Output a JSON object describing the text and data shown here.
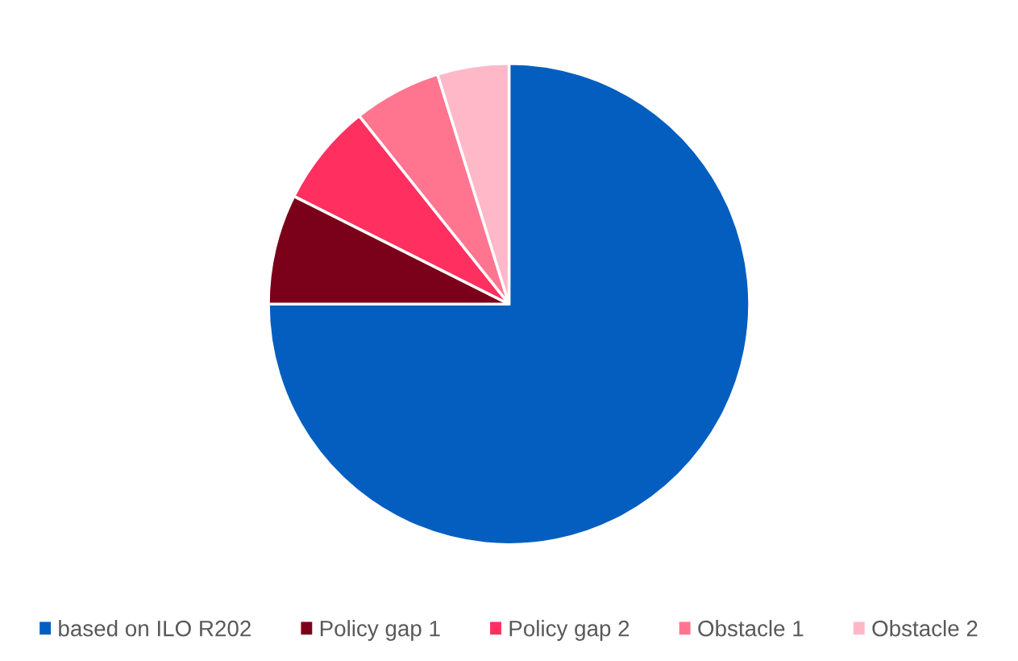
{
  "chart_data": {
    "type": "pie",
    "categories": [
      "based on ILO R202",
      "Policy gap 1",
      "Policy gap 2",
      "Obstacle 1",
      "Obstacle 2"
    ],
    "values": [
      75,
      7.4,
      6.9,
      5.9,
      4.8
    ],
    "colors": [
      "#035ebf",
      "#7b0019",
      "#ff3060",
      "#ff7590",
      "#ffb8c8"
    ],
    "legend": "bottom"
  }
}
